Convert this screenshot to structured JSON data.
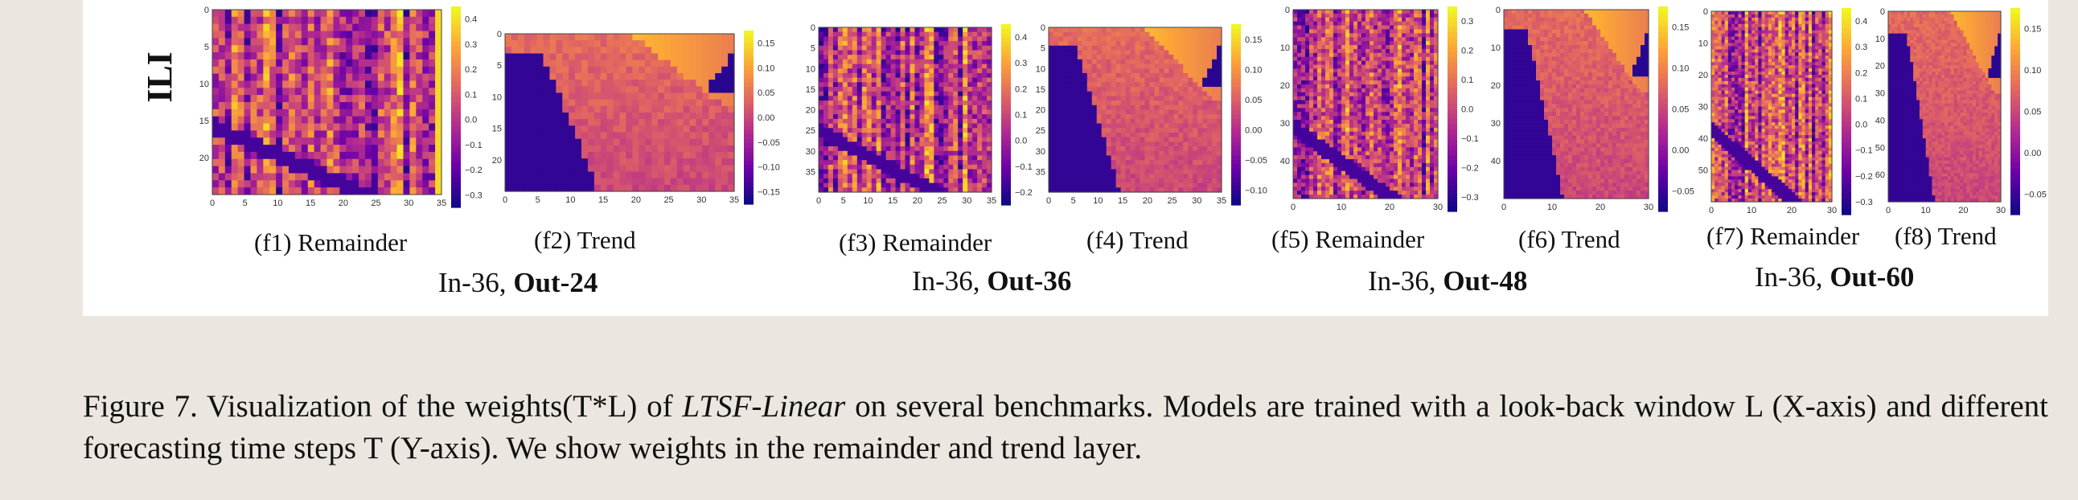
{
  "row_label": "ILI",
  "chart_data": [
    {
      "type": "heatmap",
      "id": "f1",
      "title": "(f1) Remainder",
      "x_ticks": [
        "0",
        "5",
        "10",
        "15",
        "20",
        "25",
        "30",
        "35"
      ],
      "y_ticks": [
        "0",
        "5",
        "10",
        "15",
        "20"
      ],
      "colorbar_ticks": [
        "0.4",
        "0.3",
        "0.2",
        "0.1",
        "0.0",
        "−0.1",
        "−0.2",
        "−0.3"
      ],
      "colormap": "plasma"
    },
    {
      "type": "heatmap",
      "id": "f2",
      "title": "(f2) Trend",
      "x_ticks": [
        "0",
        "5",
        "10",
        "15",
        "20",
        "25",
        "30",
        "35"
      ],
      "y_ticks": [
        "0",
        "5",
        "10",
        "15",
        "20"
      ],
      "colorbar_ticks": [
        "0.15",
        "0.10",
        "0.05",
        "0.00",
        "−0.05",
        "−0.10",
        "−0.15"
      ],
      "colormap": "plasma"
    },
    {
      "type": "heatmap",
      "id": "f3",
      "title": "(f3) Remainder",
      "x_ticks": [
        "0",
        "5",
        "10",
        "15",
        "20",
        "25",
        "30",
        "35"
      ],
      "y_ticks": [
        "0",
        "5",
        "10",
        "15",
        "20",
        "25",
        "30",
        "35"
      ],
      "colorbar_ticks": [
        "0.4",
        "0.3",
        "0.2",
        "0.1",
        "0.0",
        "−0.1",
        "−0.2"
      ],
      "colormap": "plasma"
    },
    {
      "type": "heatmap",
      "id": "f4",
      "title": "(f4) Trend",
      "x_ticks": [
        "0",
        "5",
        "10",
        "15",
        "20",
        "25",
        "30",
        "35"
      ],
      "y_ticks": [
        "0",
        "5",
        "10",
        "15",
        "20",
        "25",
        "30",
        "35"
      ],
      "colorbar_ticks": [
        "0.15",
        "0.10",
        "0.05",
        "0.00",
        "−0.05",
        "−0.10"
      ],
      "colormap": "plasma"
    },
    {
      "type": "heatmap",
      "id": "f5",
      "title": "(f5) Remainder",
      "x_ticks": [
        "0",
        "10",
        "20",
        "30"
      ],
      "y_ticks": [
        "0",
        "10",
        "20",
        "30",
        "40"
      ],
      "colorbar_ticks": [
        "0.3",
        "0.2",
        "0.1",
        "0.0",
        "−0.1",
        "−0.2",
        "−0.3"
      ],
      "colormap": "plasma"
    },
    {
      "type": "heatmap",
      "id": "f6",
      "title": "(f6) Trend",
      "x_ticks": [
        "0",
        "10",
        "20",
        "30"
      ],
      "y_ticks": [
        "0",
        "10",
        "20",
        "30",
        "40"
      ],
      "colorbar_ticks": [
        "0.15",
        "0.10",
        "0.05",
        "0.00",
        "−0.05"
      ],
      "colormap": "plasma"
    },
    {
      "type": "heatmap",
      "id": "f7",
      "title": "(f7) Remainder",
      "x_ticks": [
        "0",
        "10",
        "20",
        "30"
      ],
      "y_ticks": [
        "0",
        "10",
        "20",
        "30",
        "40",
        "50"
      ],
      "colorbar_ticks": [
        "0.4",
        "0.3",
        "0.2",
        "0.1",
        "0.0",
        "−0.1",
        "−0.2",
        "−0.3"
      ],
      "colormap": "plasma"
    },
    {
      "type": "heatmap",
      "id": "f8",
      "title": "(f8) Trend",
      "x_ticks": [
        "0",
        "10",
        "20",
        "30"
      ],
      "y_ticks": [
        "0",
        "10",
        "20",
        "30",
        "40",
        "50",
        "60"
      ],
      "colorbar_ticks": [
        "0.15",
        "0.10",
        "0.05",
        "0.00",
        "−0.05"
      ],
      "colormap": "plasma"
    }
  ],
  "groups": [
    {
      "prefix": "In-36, ",
      "bold": "Out-24"
    },
    {
      "prefix": "In-36, ",
      "bold": "Out-36"
    },
    {
      "prefix": "In-36, ",
      "bold": "Out-48"
    },
    {
      "prefix": "In-36, ",
      "bold": "Out-60"
    }
  ],
  "caption": {
    "part1": "Figure 7.  Visualization of the weights(T*L) of ",
    "italic": "LTSF-Linear",
    "part2": " on several benchmarks.  Models are trained with a look-back window L (X-axis) and different forecasting time steps T (Y-axis). We show weights in the remainder and trend layer."
  }
}
